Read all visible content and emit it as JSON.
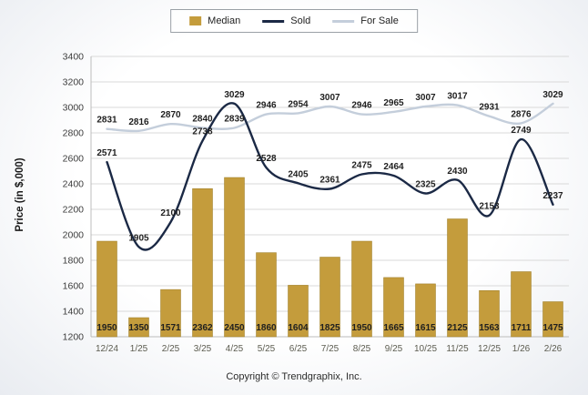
{
  "legend": {
    "items": [
      {
        "label": "Median",
        "swatch": "bar"
      },
      {
        "label": "Sold",
        "swatch": "line"
      },
      {
        "label": "For Sale",
        "swatch": "line"
      }
    ]
  },
  "chart_data": {
    "type": "combo",
    "title": "",
    "xlabel": "",
    "ylabel": "Price (in $,000)",
    "ylim": [
      1200,
      3400
    ],
    "ytick_step": 200,
    "grid": true,
    "legend_position": "top",
    "categories": [
      "12/24",
      "1/25",
      "2/25",
      "3/25",
      "4/25",
      "5/25",
      "6/25",
      "7/25",
      "8/25",
      "9/25",
      "10/25",
      "11/25",
      "12/25",
      "1/26",
      "2/26"
    ],
    "series": [
      {
        "name": "Median",
        "type": "bar",
        "color": "#C49C3C",
        "values": [
          1950,
          1350,
          1571,
          2362,
          2450,
          1860,
          1604,
          1825,
          1950,
          1665,
          1615,
          2125,
          1563,
          1711,
          1475
        ]
      },
      {
        "name": "Sold",
        "type": "line",
        "color": "#1B2945",
        "values": [
          2571,
          1905,
          2100,
          2738,
          3029,
          2528,
          2405,
          2361,
          2475,
          2464,
          2325,
          2430,
          2153,
          2749,
          2237
        ]
      },
      {
        "name": "For Sale",
        "type": "line",
        "color": "#C4CEDB",
        "values": [
          2831,
          2816,
          2870,
          2840,
          2839,
          2946,
          2954,
          3007,
          2946,
          2965,
          3007,
          3017,
          2931,
          2876,
          3029
        ]
      }
    ],
    "colors": {
      "label": "#1f1f1f",
      "tick": "#3c3c3c",
      "x_tick": "#5c5c50",
      "grid": "#d9d9d9",
      "axis": "#bcbcbc"
    }
  },
  "footer": {
    "copyright": "Copyright © Trendgraphix, Inc."
  }
}
